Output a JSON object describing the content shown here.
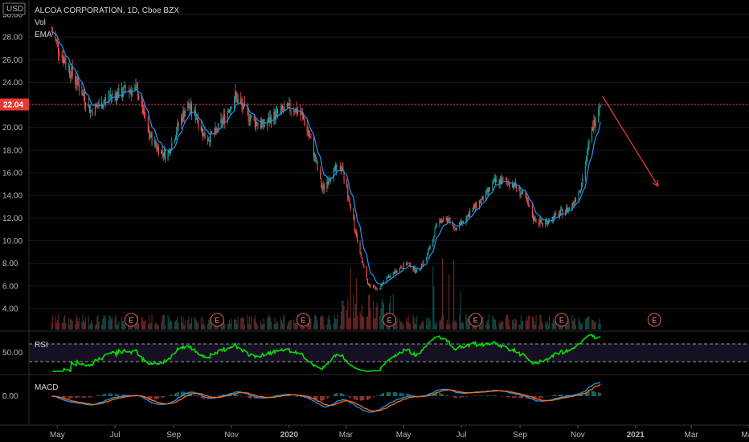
{
  "header": {
    "currency": "USD",
    "title": "ALCOA CORPORATION, 1D, Cboe BZX",
    "indicators": [
      "Vol",
      "EMA"
    ]
  },
  "price_axis": {
    "ticks": [
      "30.00",
      "28.00",
      "26.00",
      "24.00",
      "22.00",
      "20.00",
      "18.00",
      "16.00",
      "14.00",
      "12.00",
      "10.00",
      "8.00",
      "6.00",
      "4.00"
    ],
    "last_price": "22.04"
  },
  "time_axis": {
    "labels": [
      "May",
      "Jul",
      "Sep",
      "Nov",
      "2020",
      "Mar",
      "May",
      "Jul",
      "Sep",
      "Nov",
      "2021",
      "Mar",
      "May"
    ]
  },
  "rsi": {
    "label": "RSI",
    "tick": "50.00"
  },
  "macd": {
    "label": "MACD",
    "tick": "0.00"
  },
  "earnings_marker": "E",
  "colors": {
    "background": "#000000",
    "up": "#26a69a",
    "down": "#ef5350",
    "ema": "#2196f3",
    "rsi": "#00e000",
    "macd": "#2196f3",
    "signal": "#ff6d00",
    "arrow": "#e53935",
    "price_tag": "#e53935"
  },
  "chart_data": {
    "type": "candlestick",
    "title": "ALCOA CORPORATION, 1D, Cboe BZX",
    "x_start": "2019-04",
    "x_end": "2021-05",
    "ylim": [
      3,
      30
    ],
    "price_path": [
      [
        "2019-04-25",
        28.5
      ],
      [
        "2019-05-05",
        26.5
      ],
      [
        "2019-05-15",
        25.0
      ],
      [
        "2019-05-25",
        23.5
      ],
      [
        "2019-06-05",
        21.5
      ],
      [
        "2019-06-15",
        22.0
      ],
      [
        "2019-06-25",
        22.8
      ],
      [
        "2019-07-05",
        23.0
      ],
      [
        "2019-07-15",
        23.4
      ],
      [
        "2019-07-25",
        23.2
      ],
      [
        "2019-08-05",
        19.5
      ],
      [
        "2019-08-15",
        18.2
      ],
      [
        "2019-08-25",
        17.5
      ],
      [
        "2019-09-05",
        20.0
      ],
      [
        "2019-09-15",
        22.0
      ],
      [
        "2019-09-25",
        21.0
      ],
      [
        "2019-10-05",
        19.0
      ],
      [
        "2019-10-15",
        19.5
      ],
      [
        "2019-10-25",
        21.0
      ],
      [
        "2019-11-05",
        22.8
      ],
      [
        "2019-11-15",
        21.5
      ],
      [
        "2019-11-25",
        20.5
      ],
      [
        "2019-12-05",
        20.2
      ],
      [
        "2019-12-15",
        21.0
      ],
      [
        "2019-12-25",
        21.5
      ],
      [
        "2020-01-05",
        21.8
      ],
      [
        "2020-01-15",
        21.0
      ],
      [
        "2020-01-25",
        18.5
      ],
      [
        "2020-02-05",
        14.5
      ],
      [
        "2020-02-15",
        16.0
      ],
      [
        "2020-02-25",
        16.5
      ],
      [
        "2020-03-05",
        13.5
      ],
      [
        "2020-03-15",
        9.0
      ],
      [
        "2020-03-25",
        6.0
      ],
      [
        "2020-04-05",
        5.8
      ],
      [
        "2020-04-15",
        6.8
      ],
      [
        "2020-04-25",
        7.5
      ],
      [
        "2020-05-05",
        8.0
      ],
      [
        "2020-05-15",
        7.3
      ],
      [
        "2020-05-25",
        8.5
      ],
      [
        "2020-06-05",
        11.5
      ],
      [
        "2020-06-15",
        12.0
      ],
      [
        "2020-06-25",
        11.0
      ],
      [
        "2020-07-05",
        12.0
      ],
      [
        "2020-07-15",
        13.0
      ],
      [
        "2020-07-25",
        13.8
      ],
      [
        "2020-08-05",
        15.2
      ],
      [
        "2020-08-15",
        15.3
      ],
      [
        "2020-08-25",
        15.0
      ],
      [
        "2020-09-05",
        14.0
      ],
      [
        "2020-09-15",
        12.0
      ],
      [
        "2020-09-25",
        11.5
      ],
      [
        "2020-10-05",
        12.0
      ],
      [
        "2020-10-15",
        12.5
      ],
      [
        "2020-10-25",
        13.0
      ],
      [
        "2020-11-05",
        15.0
      ],
      [
        "2020-11-15",
        19.5
      ],
      [
        "2020-11-25",
        22.5
      ]
    ],
    "projection_arrow": [
      [
        "2020-11-27",
        22.8
      ],
      [
        "2021-01-25",
        14.8
      ]
    ],
    "earnings_dates": [
      "2019-07-18",
      "2019-10-17",
      "2020-01-16",
      "2020-04-16",
      "2020-07-16",
      "2020-10-15",
      "2021-01-21"
    ],
    "rsi_reference_levels": [
      70,
      30
    ]
  }
}
